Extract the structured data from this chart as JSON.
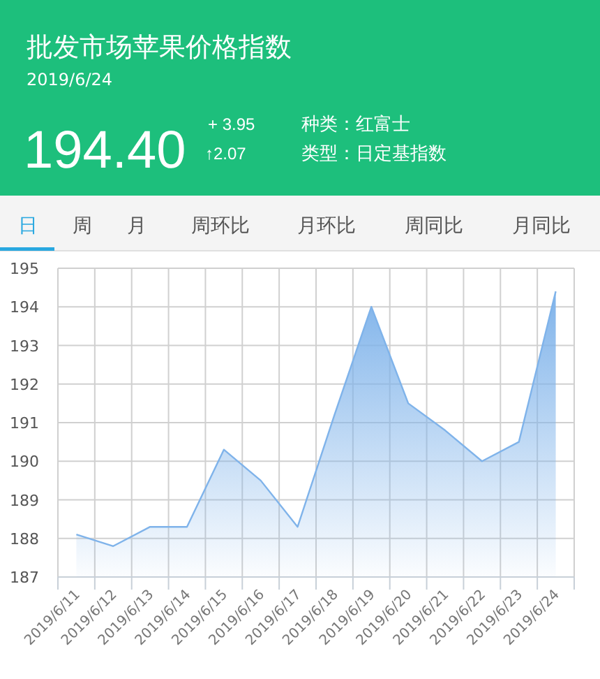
{
  "chart_data": [
    {
      "type": "other",
      "title": "批发市场苹果价格指数",
      "subtitle": "2019/6/24",
      "annotations": [
        "194.40",
        "+ 3.95",
        "↑2.07",
        "种类：红富士",
        "类型：日定基指数",
        "日",
        "周",
        "月",
        "周环比",
        "月环比",
        "周同比",
        "月同比"
      ]
    },
    {
      "type": "area",
      "categories": [
        "2019/6/11",
        "2019/6/12",
        "2019/6/13",
        "2019/6/14",
        "2019/6/15",
        "2019/6/16",
        "2019/6/17",
        "2019/6/18",
        "2019/6/19",
        "2019/6/20",
        "2019/6/21",
        "2019/6/22",
        "2019/6/23",
        "2019/6/24"
      ],
      "values": [
        188.1,
        187.8,
        188.3,
        188.3,
        190.3,
        189.5,
        188.3,
        191.2,
        194.0,
        191.5,
        190.8,
        190.0,
        190.5,
        194.4
      ],
      "color": "#7fb3ea",
      "ylim": [
        187,
        195
      ],
      "yticks": [
        187,
        188,
        189,
        190,
        191,
        192,
        193,
        194,
        195
      ],
      "grid": true
    }
  ]
}
